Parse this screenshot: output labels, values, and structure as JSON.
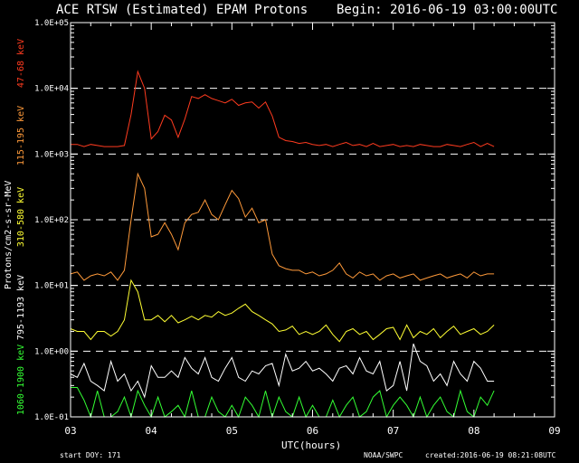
{
  "chart_data": {
    "type": "line",
    "title": "ACE RTSW (Estimated) EPAM Protons",
    "begin": "Begin: 2016-06-19 03:00:00UTC",
    "ylabel": "Protons/cm2-s-sr-MeV",
    "xlabel": "UTC(hours)",
    "y_scale": "log",
    "ylim": [
      0.1,
      100000
    ],
    "xlim": [
      3,
      9
    ],
    "y_ticks": [
      "1.0E-01",
      "1.0E+00",
      "1.0E+01",
      "1.0E+02",
      "1.0E+03",
      "1.0E+04",
      "1.0E+05"
    ],
    "x_ticks": [
      "03",
      "04",
      "05",
      "06",
      "07",
      "08",
      "09"
    ],
    "grid_lines_y": [
      1,
      10,
      100,
      1000,
      10000
    ],
    "footer": {
      "start_doy": "start DOY:  171",
      "source": "NOAA/SWPC",
      "created": "created:2016-06-19 08:21:08UTC"
    },
    "series": [
      {
        "name": "47-68 keV",
        "color": "#ff3b1f",
        "x": [
          3.0,
          3.083,
          3.167,
          3.25,
          3.333,
          3.417,
          3.5,
          3.583,
          3.667,
          3.75,
          3.833,
          3.917,
          4.0,
          4.083,
          4.167,
          4.25,
          4.333,
          4.417,
          4.5,
          4.583,
          4.667,
          4.75,
          4.833,
          4.917,
          5.0,
          5.083,
          5.167,
          5.25,
          5.333,
          5.417,
          5.5,
          5.583,
          5.667,
          5.75,
          5.833,
          5.917,
          6.0,
          6.083,
          6.167,
          6.25,
          6.333,
          6.417,
          6.5,
          6.583,
          6.667,
          6.75,
          6.833,
          6.917,
          7.0,
          7.083,
          7.167,
          7.25,
          7.333,
          7.417,
          7.5,
          7.583,
          7.667,
          7.75,
          7.833,
          7.917,
          8.0,
          8.083,
          8.167,
          8.25
        ],
        "values": [
          1400,
          1400,
          1300,
          1400,
          1350,
          1300,
          1300,
          1300,
          1350,
          4000,
          18000,
          10000,
          1700,
          2200,
          3900,
          3300,
          1800,
          3400,
          7500,
          7000,
          8000,
          7000,
          6500,
          6000,
          6800,
          5500,
          6000,
          6200,
          5000,
          6200,
          3800,
          1800,
          1600,
          1550,
          1450,
          1500,
          1400,
          1350,
          1400,
          1300,
          1400,
          1500,
          1350,
          1400,
          1300,
          1450,
          1300,
          1350,
          1400,
          1300,
          1350,
          1300,
          1400,
          1350,
          1300,
          1300,
          1400,
          1350,
          1300,
          1400,
          1500,
          1300,
          1450,
          1300
        ]
      },
      {
        "name": "115-195 keV",
        "color": "#ff9a3a",
        "x": [
          3.0,
          3.083,
          3.167,
          3.25,
          3.333,
          3.417,
          3.5,
          3.583,
          3.667,
          3.75,
          3.833,
          3.917,
          4.0,
          4.083,
          4.167,
          4.25,
          4.333,
          4.417,
          4.5,
          4.583,
          4.667,
          4.75,
          4.833,
          4.917,
          5.0,
          5.083,
          5.167,
          5.25,
          5.333,
          5.417,
          5.5,
          5.583,
          5.667,
          5.75,
          5.833,
          5.917,
          6.0,
          6.083,
          6.167,
          6.25,
          6.333,
          6.417,
          6.5,
          6.583,
          6.667,
          6.75,
          6.833,
          6.917,
          7.0,
          7.083,
          7.167,
          7.25,
          7.333,
          7.417,
          7.5,
          7.583,
          7.667,
          7.75,
          7.833,
          7.917,
          8.0,
          8.083,
          8.167,
          8.25
        ],
        "values": [
          15,
          16,
          12,
          14,
          15,
          14,
          16,
          12,
          17,
          100,
          500,
          300,
          55,
          60,
          90,
          60,
          35,
          90,
          120,
          130,
          200,
          120,
          100,
          170,
          280,
          210,
          110,
          150,
          90,
          100,
          30,
          20,
          18,
          17,
          17,
          15,
          16,
          14,
          15,
          17,
          22,
          15,
          13,
          16,
          14,
          15,
          12,
          14,
          15,
          13,
          14,
          15,
          12,
          13,
          14,
          15,
          13,
          14,
          15,
          13,
          16,
          14,
          15,
          15
        ]
      },
      {
        "name": "310-580 keV",
        "color": "#ffff33",
        "x": [
          3.0,
          3.083,
          3.167,
          3.25,
          3.333,
          3.417,
          3.5,
          3.583,
          3.667,
          3.75,
          3.833,
          3.917,
          4.0,
          4.083,
          4.167,
          4.25,
          4.333,
          4.417,
          4.5,
          4.583,
          4.667,
          4.75,
          4.833,
          4.917,
          5.0,
          5.083,
          5.167,
          5.25,
          5.333,
          5.417,
          5.5,
          5.583,
          5.667,
          5.75,
          5.833,
          5.917,
          6.0,
          6.083,
          6.167,
          6.25,
          6.333,
          6.417,
          6.5,
          6.583,
          6.667,
          6.75,
          6.833,
          6.917,
          7.0,
          7.083,
          7.167,
          7.25,
          7.333,
          7.417,
          7.5,
          7.583,
          7.667,
          7.75,
          7.833,
          7.917,
          8.0,
          8.083,
          8.167,
          8.25
        ],
        "values": [
          2.2,
          2.0,
          2.0,
          1.5,
          2.0,
          2.0,
          1.7,
          2.0,
          3.0,
          12,
          8,
          3,
          3,
          3.5,
          2.8,
          3.5,
          2.7,
          3,
          3.4,
          3.0,
          3.5,
          3.3,
          4.0,
          3.5,
          3.8,
          4.5,
          5.2,
          4.0,
          3.5,
          3.0,
          2.6,
          2.0,
          2.1,
          2.4,
          1.8,
          2.0,
          1.8,
          2.0,
          2.5,
          1.8,
          1.4,
          2.0,
          2.2,
          1.8,
          2.0,
          1.5,
          1.8,
          2.2,
          2.3,
          1.5,
          2.5,
          1.6,
          2.0,
          1.8,
          2.2,
          1.6,
          2.0,
          2.4,
          1.8,
          2.0,
          2.2,
          1.8,
          2.0,
          2.5
        ]
      },
      {
        "name": "795-1193 keV",
        "color": "#ffffff",
        "x": [
          3.0,
          3.083,
          3.167,
          3.25,
          3.333,
          3.417,
          3.5,
          3.583,
          3.667,
          3.75,
          3.833,
          3.917,
          4.0,
          4.083,
          4.167,
          4.25,
          4.333,
          4.417,
          4.5,
          4.583,
          4.667,
          4.75,
          4.833,
          4.917,
          5.0,
          5.083,
          5.167,
          5.25,
          5.333,
          5.417,
          5.5,
          5.583,
          5.667,
          5.75,
          5.833,
          5.917,
          6.0,
          6.083,
          6.167,
          6.25,
          6.333,
          6.417,
          6.5,
          6.583,
          6.667,
          6.75,
          6.833,
          6.917,
          7.0,
          7.083,
          7.167,
          7.25,
          7.333,
          7.417,
          7.5,
          7.583,
          7.667,
          7.75,
          7.833,
          7.917,
          8.0,
          8.083,
          8.167,
          8.25
        ],
        "values": [
          0.45,
          0.4,
          0.65,
          0.35,
          0.3,
          0.25,
          0.7,
          0.35,
          0.45,
          0.25,
          0.35,
          0.2,
          0.6,
          0.4,
          0.4,
          0.5,
          0.4,
          0.8,
          0.55,
          0.45,
          0.8,
          0.4,
          0.35,
          0.55,
          0.8,
          0.4,
          0.35,
          0.5,
          0.45,
          0.6,
          0.65,
          0.3,
          0.9,
          0.5,
          0.55,
          0.7,
          0.5,
          0.55,
          0.45,
          0.35,
          0.55,
          0.6,
          0.45,
          0.8,
          0.5,
          0.45,
          0.7,
          0.25,
          0.3,
          0.7,
          0.25,
          1.3,
          0.7,
          0.6,
          0.35,
          0.45,
          0.3,
          0.7,
          0.45,
          0.35,
          0.7,
          0.55,
          0.35,
          0.35
        ]
      },
      {
        "name": "1060-1900 keV",
        "color": "#33ff33",
        "x": [
          3.0,
          3.083,
          3.167,
          3.25,
          3.333,
          3.417,
          3.5,
          3.583,
          3.667,
          3.75,
          3.833,
          3.917,
          4.0,
          4.083,
          4.167,
          4.25,
          4.333,
          4.417,
          4.5,
          4.583,
          4.667,
          4.75,
          4.833,
          4.917,
          5.0,
          5.083,
          5.167,
          5.25,
          5.333,
          5.417,
          5.5,
          5.583,
          5.667,
          5.75,
          5.833,
          5.917,
          6.0,
          6.083,
          6.167,
          6.25,
          6.333,
          6.417,
          6.5,
          6.583,
          6.667,
          6.75,
          6.833,
          6.917,
          7.0,
          7.083,
          7.167,
          7.25,
          7.333,
          7.417,
          7.5,
          7.583,
          7.667,
          7.75,
          7.833,
          7.917,
          8.0,
          8.083,
          8.167,
          8.25
        ],
        "values": [
          0.28,
          0.28,
          0.18,
          0.1,
          0.25,
          0.1,
          0.1,
          0.12,
          0.2,
          0.1,
          0.25,
          0.15,
          0.1,
          0.2,
          0.1,
          0.12,
          0.15,
          0.1,
          0.25,
          0.1,
          0.1,
          0.2,
          0.12,
          0.1,
          0.15,
          0.1,
          0.2,
          0.15,
          0.1,
          0.25,
          0.1,
          0.2,
          0.12,
          0.1,
          0.2,
          0.1,
          0.15,
          0.1,
          0.1,
          0.18,
          0.1,
          0.15,
          0.2,
          0.1,
          0.12,
          0.2,
          0.25,
          0.1,
          0.15,
          0.2,
          0.15,
          0.1,
          0.2,
          0.1,
          0.15,
          0.2,
          0.12,
          0.1,
          0.25,
          0.12,
          0.1,
          0.2,
          0.15,
          0.25
        ]
      }
    ]
  }
}
